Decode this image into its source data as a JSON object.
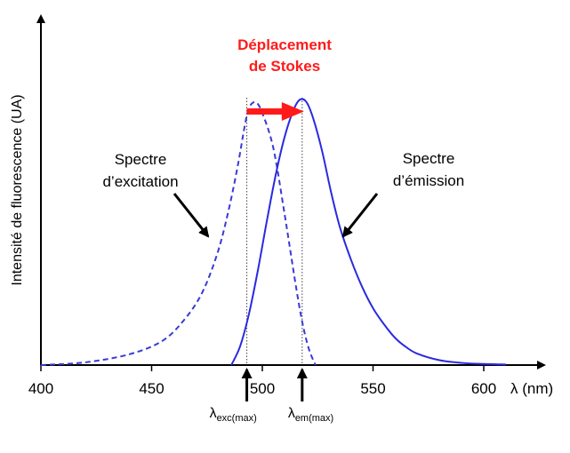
{
  "chart_data": {
    "type": "line",
    "title": "",
    "xlabel": "λ (nm)",
    "ylabel": "Intensité de fluorescence (UA)",
    "xlim": [
      400,
      610
    ],
    "ylim": [
      0,
      1.0
    ],
    "x_ticks": [
      "400",
      "450",
      "500",
      "550",
      "600"
    ],
    "grid": false,
    "series": [
      {
        "name": "Spectre d'excitation",
        "style": "dashed",
        "color": "#3a3ad8",
        "x": [
          400,
          420,
          440,
          455,
          465,
          473,
          480,
          485,
          489,
          492,
          494,
          497,
          500,
          505,
          510,
          515,
          518,
          521,
          524
        ],
        "y": [
          0.0,
          0.01,
          0.04,
          0.09,
          0.17,
          0.27,
          0.42,
          0.58,
          0.74,
          0.88,
          0.95,
          0.97,
          0.93,
          0.8,
          0.56,
          0.3,
          0.16,
          0.06,
          0.0
        ]
      },
      {
        "name": "Spectre d'émission",
        "style": "solid",
        "color": "#2a2ae0",
        "x": [
          486,
          490,
          494,
          498,
          502,
          506,
          510,
          514,
          517,
          520,
          523,
          527,
          531,
          535,
          540,
          545,
          550,
          555,
          560,
          565,
          570,
          580,
          590,
          600,
          610
        ],
        "y": [
          0.0,
          0.07,
          0.19,
          0.35,
          0.53,
          0.7,
          0.84,
          0.94,
          0.98,
          0.97,
          0.91,
          0.79,
          0.64,
          0.51,
          0.39,
          0.29,
          0.21,
          0.15,
          0.1,
          0.066,
          0.042,
          0.018,
          0.008,
          0.004,
          0.002
        ]
      }
    ],
    "annotations": {
      "stokes_title_line1": "Déplacement",
      "stokes_title_line2": "de Stokes",
      "excitation_label_line1": "Spectre",
      "excitation_label_line2": "d’excitation",
      "emission_label_line1": "Spectre",
      "emission_label_line2": "d’émission",
      "lambda_exc": "λ",
      "lambda_exc_sub": "exc(max)",
      "lambda_em": "λ",
      "lambda_em_sub": "em(max)",
      "lambda_exc_value": 493,
      "lambda_em_value": 518
    },
    "colors": {
      "arrow_red": "#ff1a1a",
      "axis": "#000000"
    }
  }
}
